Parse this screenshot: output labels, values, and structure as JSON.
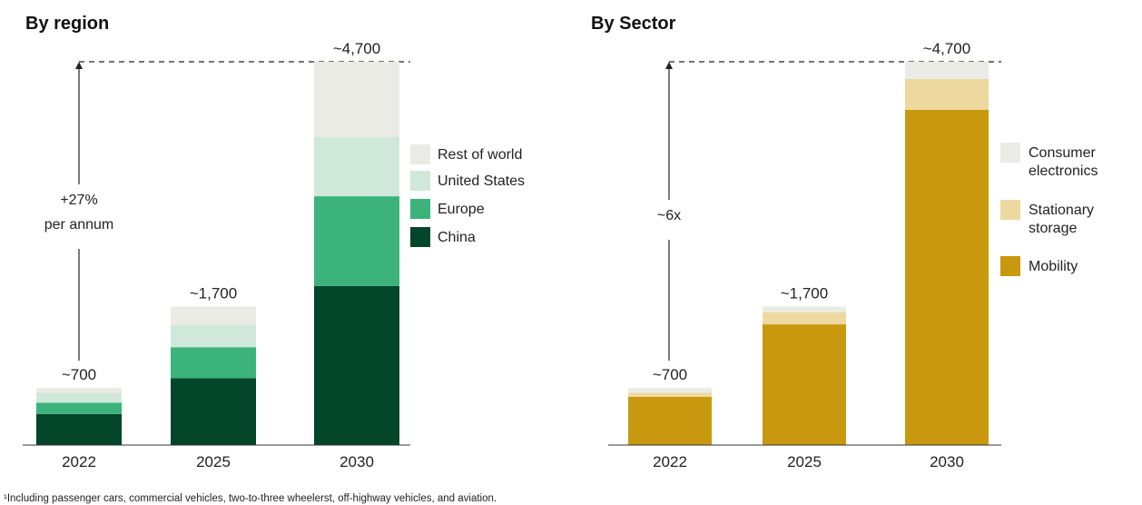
{
  "chart_data": [
    {
      "type": "bar",
      "stacked": true,
      "title": "By region",
      "categories": [
        "2022",
        "2025",
        "2030"
      ],
      "totals": [
        "~700",
        "~1,700",
        "~4,700"
      ],
      "total_values": [
        700,
        1700,
        4700
      ],
      "ylim": [
        0,
        4700
      ],
      "growth_annotation": [
        "+27%",
        "per annum"
      ],
      "series": [
        {
          "name": "China",
          "values": [
            380,
            820,
            1950
          ],
          "color": "#03462A"
        },
        {
          "name": "Europe",
          "values": [
            140,
            380,
            1100
          ],
          "color": "#3BB37B"
        },
        {
          "name": "United States",
          "values": [
            120,
            270,
            730
          ],
          "color": "#D0E8DA"
        },
        {
          "name": "Rest of world",
          "values": [
            60,
            230,
            920
          ],
          "color": "#EBEBE5"
        }
      ],
      "legend": [
        "Rest of world",
        "United States",
        "Europe",
        "China"
      ],
      "legend_position": "right"
    },
    {
      "type": "bar",
      "stacked": true,
      "title": "By Sector",
      "categories": [
        "2022",
        "2025",
        "2030"
      ],
      "totals": [
        "~700",
        "~1,700",
        "~4,700"
      ],
      "total_values": [
        700,
        1700,
        4700
      ],
      "ylim": [
        0,
        4700
      ],
      "growth_annotation": [
        "~6x"
      ],
      "series": [
        {
          "name": "Mobility",
          "values": [
            590,
            1480,
            4110
          ],
          "color": "#C8990F"
        },
        {
          "name": "Stationary storage",
          "values": [
            50,
            150,
            380
          ],
          "color": "#EDD9A0"
        },
        {
          "name": "Consumer electronics",
          "values": [
            60,
            70,
            210
          ],
          "color": "#EBEBE5"
        }
      ],
      "legend": [
        "Consumer electronics",
        "Stationary storage",
        "Mobility"
      ],
      "legend_labels": [
        [
          "Consumer",
          "electronics"
        ],
        [
          "Stationary",
          "storage"
        ],
        [
          "Mobility"
        ]
      ],
      "legend_position": "right"
    }
  ],
  "footnote": "¹Including passenger cars, commercial vehicles, two-to-three wheelerst, off-highway vehicles, and aviation."
}
